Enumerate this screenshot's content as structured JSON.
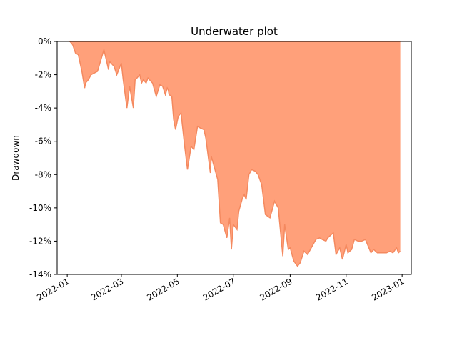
{
  "chart_data": {
    "type": "area",
    "title": "Underwater plot",
    "xlabel": "",
    "ylabel": "Drawdown",
    "ylim": [
      -14,
      0
    ],
    "xlim": [
      "2021-12-21",
      "2023-01-11"
    ],
    "y_ticks": [
      0,
      -2,
      -4,
      -6,
      -8,
      -10,
      -12,
      -14
    ],
    "y_tick_labels": [
      "0%",
      "-2%",
      "-4%",
      "-6%",
      "-8%",
      "-10%",
      "-12%",
      "-14%"
    ],
    "x_ticks": [
      "2022-01-01",
      "2022-03-01",
      "2022-05-01",
      "2022-07-01",
      "2022-09-01",
      "2022-11-01",
      "2023-01-01"
    ],
    "x_tick_labels": [
      "2022-01",
      "2022-03",
      "2022-05",
      "2022-07",
      "2022-09",
      "2022-11",
      "2023-01"
    ],
    "grid": false,
    "fill_color": "#ffa07a",
    "line_color": "#f4895f",
    "series": [
      {
        "x": [
          "2022-01-03",
          "2022-01-04",
          "2022-01-07",
          "2022-01-10",
          "2022-01-13",
          "2022-01-17",
          "2022-01-20",
          "2022-01-21",
          "2022-01-24",
          "2022-01-27",
          "2022-02-03",
          "2022-02-10",
          "2022-02-15",
          "2022-02-16",
          "2022-02-21",
          "2022-02-24",
          "2022-03-01",
          "2022-03-03",
          "2022-03-07",
          "2022-03-10",
          "2022-03-14",
          "2022-03-16",
          "2022-03-18",
          "2022-03-21",
          "2022-03-23",
          "2022-03-25",
          "2022-03-28",
          "2022-03-30",
          "2022-04-04",
          "2022-04-08",
          "2022-04-12",
          "2022-04-15",
          "2022-04-18",
          "2022-04-20",
          "2022-04-21",
          "2022-04-22",
          "2022-04-25",
          "2022-04-27",
          "2022-04-29",
          "2022-05-02",
          "2022-05-05",
          "2022-05-09",
          "2022-05-12",
          "2022-05-16",
          "2022-05-19",
          "2022-05-23",
          "2022-05-26",
          "2022-05-30",
          "2022-06-01",
          "2022-06-06",
          "2022-06-07",
          "2022-06-14",
          "2022-06-17",
          "2022-06-20",
          "2022-06-24",
          "2022-06-27",
          "2022-06-29",
          "2022-07-01",
          "2022-07-05",
          "2022-07-07",
          "2022-07-11",
          "2022-07-13",
          "2022-07-15",
          "2022-07-18",
          "2022-07-21",
          "2022-07-25",
          "2022-07-28",
          "2022-08-01",
          "2022-08-05",
          "2022-08-10",
          "2022-08-15",
          "2022-08-19",
          "2022-08-24",
          "2022-08-26",
          "2022-08-30",
          "2022-09-01",
          "2022-09-05",
          "2022-09-09",
          "2022-09-12",
          "2022-09-16",
          "2022-09-20",
          "2022-09-26",
          "2022-09-29",
          "2022-10-03",
          "2022-10-06",
          "2022-10-10",
          "2022-10-12",
          "2022-10-14",
          "2022-10-18",
          "2022-10-21",
          "2022-10-25",
          "2022-10-28",
          "2022-11-01",
          "2022-11-03",
          "2022-11-07",
          "2022-11-10",
          "2022-11-14",
          "2022-11-18",
          "2022-11-22",
          "2022-11-28",
          "2022-12-01",
          "2022-12-05",
          "2022-12-08",
          "2022-12-12",
          "2022-12-15",
          "2022-12-19",
          "2022-12-22",
          "2022-12-26",
          "2022-12-28",
          "2022-12-30"
        ],
        "y": [
          0,
          0,
          -0.2,
          -0.7,
          -0.8,
          -1.8,
          -2.8,
          -2.5,
          -2.3,
          -2.0,
          -1.8,
          -0.5,
          -1.7,
          -1.2,
          -1.5,
          -2.0,
          -1.3,
          -2.3,
          -4.0,
          -2.7,
          -4.0,
          -2.3,
          -2.2,
          -2.0,
          -2.5,
          -2.3,
          -2.5,
          -2.2,
          -2.5,
          -3.3,
          -2.6,
          -2.7,
          -3.2,
          -2.8,
          -2.9,
          -3.2,
          -3.3,
          -4.7,
          -5.3,
          -4.5,
          -4.3,
          -6.3,
          -7.7,
          -6.3,
          -6.5,
          -5.1,
          -5.2,
          -5.3,
          -5.8,
          -7.9,
          -6.9,
          -8.3,
          -10.9,
          -11.0,
          -11.8,
          -10.6,
          -12.5,
          -11.0,
          -11.3,
          -10.2,
          -9.4,
          -9.2,
          -9.5,
          -8.0,
          -7.7,
          -7.8,
          -8.0,
          -8.6,
          -10.4,
          -10.6,
          -9.6,
          -10.0,
          -12.9,
          -11.0,
          -12.5,
          -12.4,
          -13.2,
          -13.5,
          -13.3,
          -12.6,
          -12.8,
          -12.2,
          -11.9,
          -11.8,
          -11.9,
          -12.0,
          -11.8,
          -11.7,
          -11.5,
          -12.8,
          -12.4,
          -13.1,
          -12.2,
          -12.7,
          -12.5,
          -11.9,
          -12.0,
          -12.0,
          -11.9,
          -12.7,
          -12.5,
          -12.7,
          -12.7,
          -12.7,
          -12.7,
          -12.6,
          -12.7,
          -12.4,
          -12.7,
          -12.6
        ]
      }
    ]
  }
}
